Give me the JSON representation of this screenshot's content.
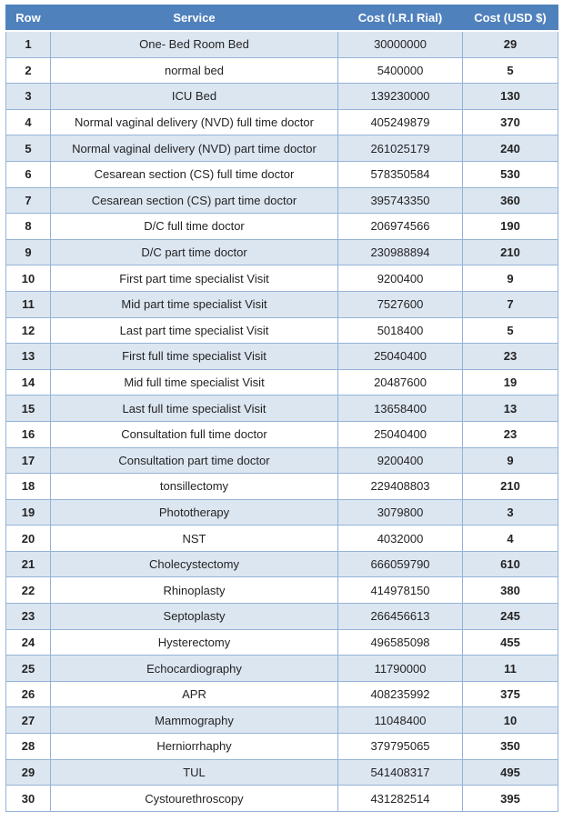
{
  "table": {
    "columns": [
      {
        "label": "Row"
      },
      {
        "label": "Service"
      },
      {
        "label": "Cost (I.R.I Rial)"
      },
      {
        "label": "Cost (USD $)"
      }
    ],
    "rows": [
      {
        "row": "1",
        "service": "One- Bed Room Bed",
        "cost_rial": "30000000",
        "cost_usd": "29"
      },
      {
        "row": "2",
        "service": "normal bed",
        "cost_rial": "5400000",
        "cost_usd": "5"
      },
      {
        "row": "3",
        "service": "ICU Bed",
        "cost_rial": "139230000",
        "cost_usd": "130"
      },
      {
        "row": "4",
        "service": "Normal vaginal delivery (NVD) full time doctor",
        "cost_rial": "405249879",
        "cost_usd": "370"
      },
      {
        "row": "5",
        "service": "Normal vaginal delivery (NVD) part time doctor",
        "cost_rial": "261025179",
        "cost_usd": "240"
      },
      {
        "row": "6",
        "service": "Cesarean section (CS) full time doctor",
        "cost_rial": "578350584",
        "cost_usd": "530"
      },
      {
        "row": "7",
        "service": "Cesarean section (CS) part time doctor",
        "cost_rial": "395743350",
        "cost_usd": "360"
      },
      {
        "row": "8",
        "service": "D/C  full time doctor",
        "cost_rial": "206974566",
        "cost_usd": "190"
      },
      {
        "row": "9",
        "service": "D/C  part  time doctor",
        "cost_rial": "230988894",
        "cost_usd": "210"
      },
      {
        "row": "10",
        "service": "First part  time specialist Visit",
        "cost_rial": "9200400",
        "cost_usd": "9"
      },
      {
        "row": "11",
        "service": "Mid part  time  specialist Visit",
        "cost_rial": "7527600",
        "cost_usd": "7"
      },
      {
        "row": "12",
        "service": "Last part  time specialist Visit",
        "cost_rial": "5018400",
        "cost_usd": "5"
      },
      {
        "row": "13",
        "service": "First full  time specialist Visit",
        "cost_rial": "25040400",
        "cost_usd": "23"
      },
      {
        "row": "14",
        "service": "Mid full  time  specialist Visit",
        "cost_rial": "20487600",
        "cost_usd": "19"
      },
      {
        "row": "15",
        "service": "Last full  time specialist Visit",
        "cost_rial": "13658400",
        "cost_usd": "13"
      },
      {
        "row": "16",
        "service": "Consultation full time doctor",
        "cost_rial": "25040400",
        "cost_usd": "23"
      },
      {
        "row": "17",
        "service": "Consultation part  time doctor",
        "cost_rial": "9200400",
        "cost_usd": "9"
      },
      {
        "row": "18",
        "service": "tonsillectomy",
        "cost_rial": "229408803",
        "cost_usd": "210"
      },
      {
        "row": "19",
        "service": "Phototherapy",
        "cost_rial": "3079800",
        "cost_usd": "3"
      },
      {
        "row": "20",
        "service": "NST",
        "cost_rial": "4032000",
        "cost_usd": "4"
      },
      {
        "row": "21",
        "service": "Cholecystectomy",
        "cost_rial": "666059790",
        "cost_usd": "610"
      },
      {
        "row": "22",
        "service": "Rhinoplasty",
        "cost_rial": "414978150",
        "cost_usd": "380"
      },
      {
        "row": "23",
        "service": "Septoplasty",
        "cost_rial": "266456613",
        "cost_usd": "245"
      },
      {
        "row": "24",
        "service": "Hysterectomy",
        "cost_rial": "496585098",
        "cost_usd": "455"
      },
      {
        "row": "25",
        "service": "Echocardiography",
        "cost_rial": "11790000",
        "cost_usd": "11"
      },
      {
        "row": "26",
        "service": "APR",
        "cost_rial": "408235992",
        "cost_usd": "375"
      },
      {
        "row": "27",
        "service": "Mammography",
        "cost_rial": "11048400",
        "cost_usd": "10"
      },
      {
        "row": "28",
        "service": "Herniorrhaphy",
        "cost_rial": "379795065",
        "cost_usd": "350"
      },
      {
        "row": "29",
        "service": "TUL",
        "cost_rial": "541408317",
        "cost_usd": "495"
      },
      {
        "row": "30",
        "service": "Cystourethroscopy",
        "cost_rial": "431282514",
        "cost_usd": "395"
      }
    ]
  },
  "colors": {
    "header_background": "#4f81bd",
    "header_text": "#ffffff",
    "banded_row_background": "#dce6f1",
    "border": "#95b3d7",
    "body_text": "#232323"
  }
}
